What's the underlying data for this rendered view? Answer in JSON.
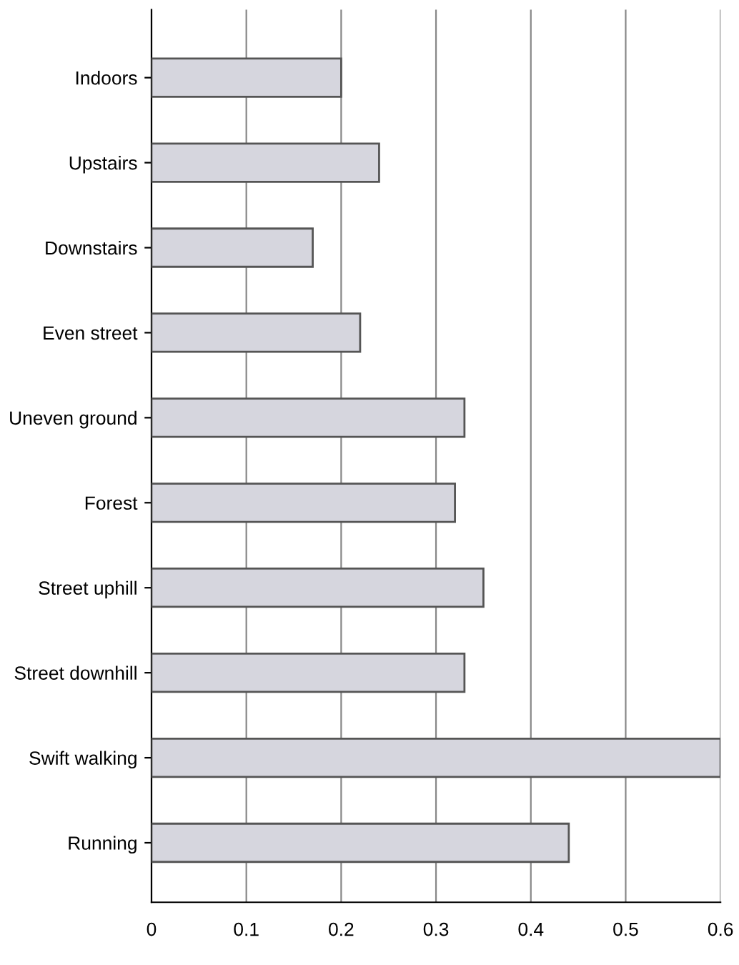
{
  "chart_data": {
    "type": "bar",
    "orientation": "horizontal",
    "categories": [
      "Indoors",
      "Upstairs",
      "Downstairs",
      "Even street",
      "Uneven ground",
      "Forest",
      "Street uphill",
      "Street downhill",
      "Swift walking",
      "Running"
    ],
    "values": [
      0.2,
      0.24,
      0.17,
      0.22,
      0.33,
      0.32,
      0.35,
      0.33,
      0.6,
      0.44
    ],
    "color": "#d6d6de",
    "xlim": [
      0,
      0.6
    ],
    "xticks": [
      0,
      0.1,
      0.2,
      0.3,
      0.4,
      0.5,
      0.6
    ],
    "grid": "x"
  }
}
